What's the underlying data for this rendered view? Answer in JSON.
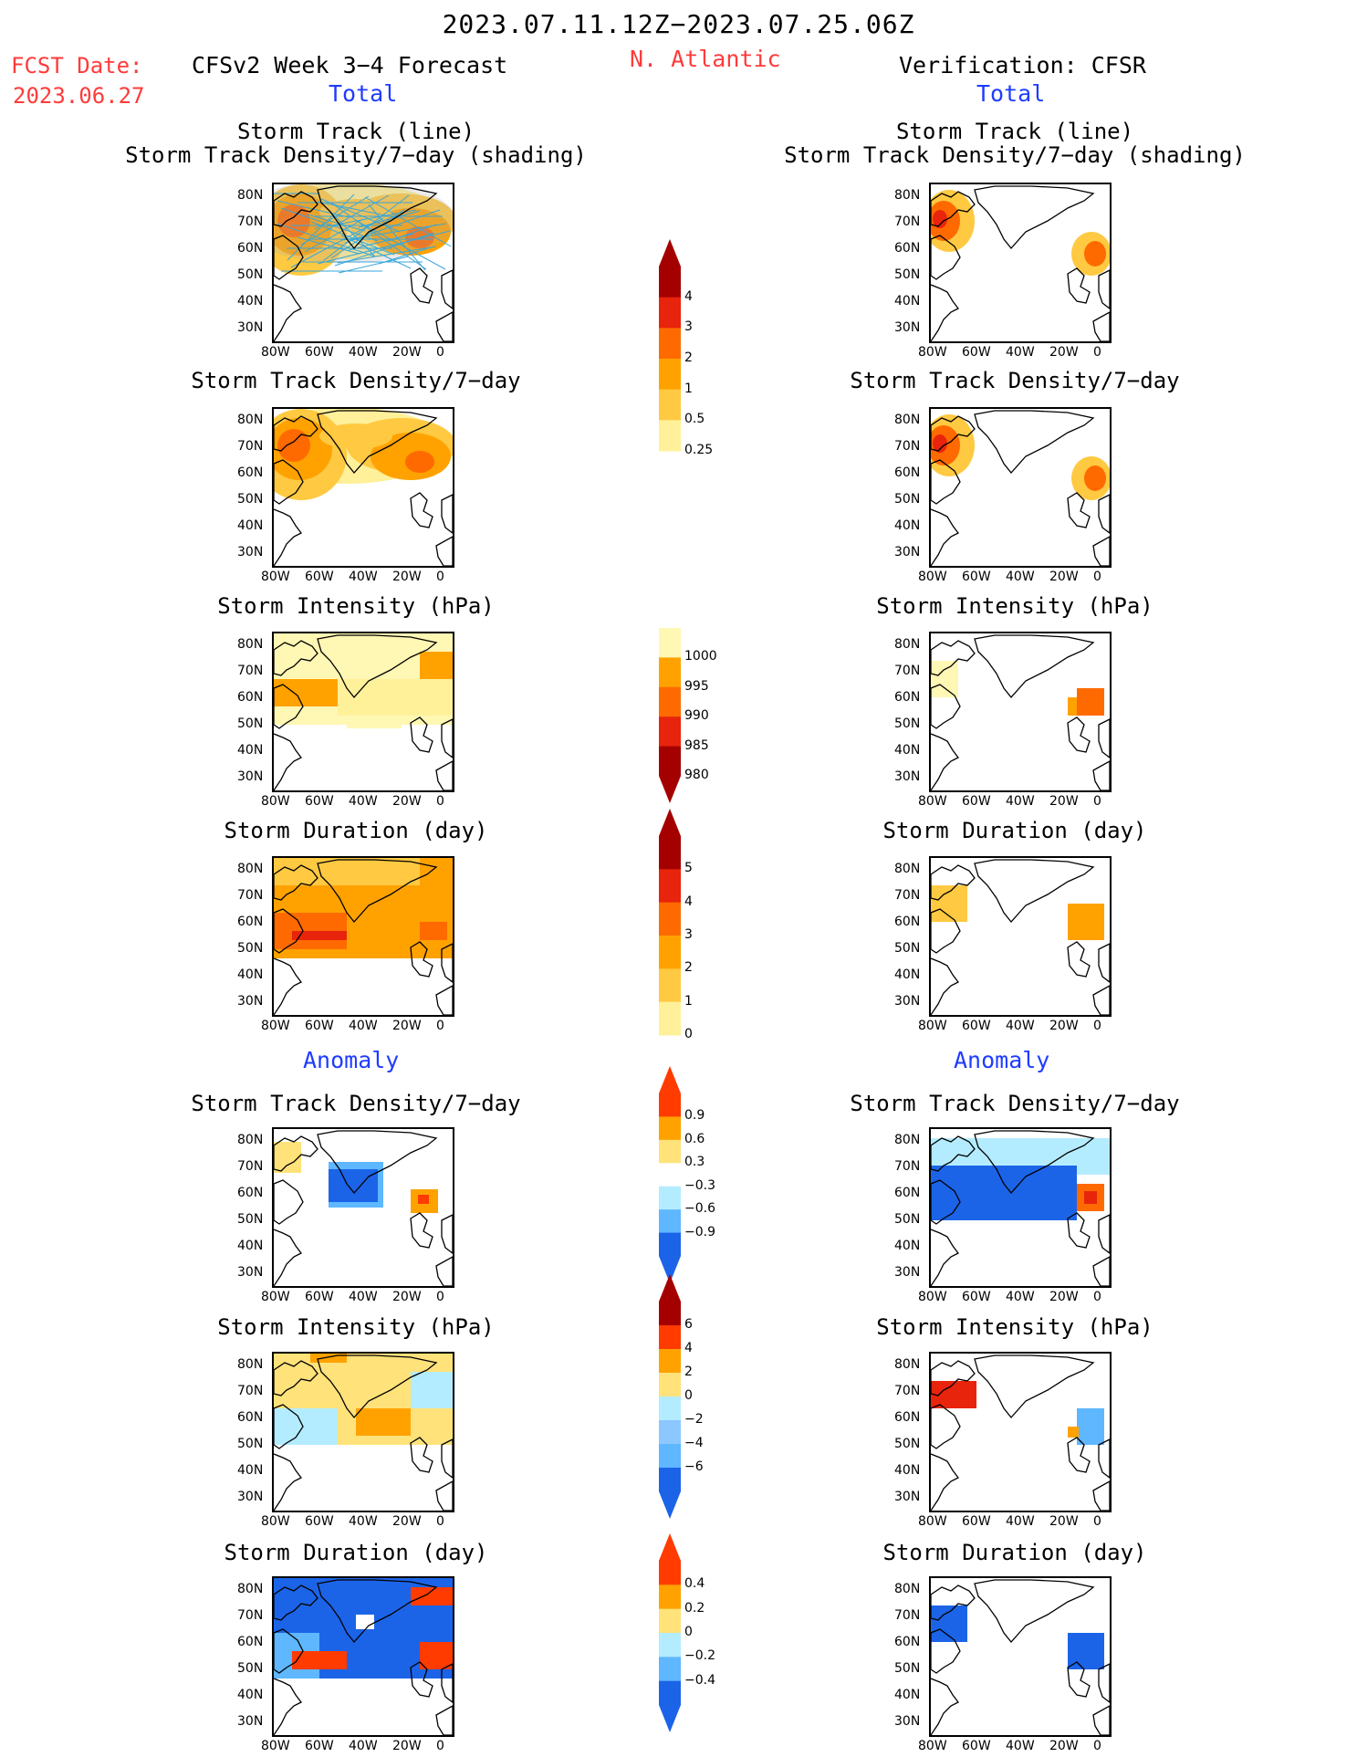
{
  "header": {
    "date_range": "2023.07.11.12Z−2023.07.25.06Z",
    "fcst_label": "FCST Date:",
    "fcst_date": "2023.06.27",
    "model_title": "CFSv2 Week 3−4 Forecast",
    "region": "N. Atlantic",
    "verification": "Verification: CFSR",
    "total_left": "Total",
    "total_right": "Total",
    "anomaly_left": "Anomaly",
    "anomaly_right": "Anomaly"
  },
  "panel_titles": {
    "track_line": "Storm Track (line)",
    "track_density_shading": "Storm Track Density/7−day (shading)",
    "track_density": "Storm Track Density/7−day",
    "intensity": "Storm Intensity (hPa)",
    "duration": "Storm Duration (day)"
  },
  "axes": {
    "lat_labels": [
      "80N",
      "70N",
      "60N",
      "50N",
      "40N",
      "30N"
    ],
    "lon_labels": [
      "80W",
      "60W",
      "40W",
      "20W",
      "0"
    ]
  },
  "colorbars": [
    {
      "id": "density",
      "labels": [
        "4",
        "3",
        "2",
        "1",
        "0.5",
        "0.25"
      ],
      "colors": [
        "#a50000",
        "#e8240c",
        "#ff6a00",
        "#ffa200",
        "#ffc941",
        "#fff09a"
      ],
      "arrow_top": true,
      "arrow_bottom": false
    },
    {
      "id": "intensity",
      "labels": [
        "1000",
        "995",
        "990",
        "985",
        "980"
      ],
      "colors": [
        "#fff7b4",
        "#ffa200",
        "#ff6a00",
        "#e8240c",
        "#a50000"
      ],
      "arrow_top": false,
      "arrow_bottom": true
    },
    {
      "id": "duration",
      "labels": [
        "5",
        "4",
        "3",
        "2",
        "1",
        "0"
      ],
      "colors": [
        "#a50000",
        "#e8240c",
        "#ff6a00",
        "#ffa200",
        "#ffc941",
        "#fff09a"
      ],
      "arrow_top": true,
      "arrow_bottom": false
    },
    {
      "id": "density_anom",
      "labels": [
        "0.9",
        "0.6",
        "0.3",
        "−0.3",
        "−0.6",
        "−0.9"
      ],
      "colors": [
        "#ff3b00",
        "#ffa200",
        "#ffe27a",
        "#ffffff",
        "#b4ecff",
        "#5eb7ff",
        "#1b64e8"
      ],
      "arrow_top": true,
      "arrow_bottom": true
    },
    {
      "id": "intensity_anom",
      "labels": [
        "6",
        "4",
        "2",
        "0",
        "−2",
        "−4",
        "−6"
      ],
      "colors": [
        "#a50000",
        "#ff3b00",
        "#ffa200",
        "#ffe27a",
        "#b4ecff",
        "#8cc8ff",
        "#5eb7ff",
        "#1b64e8"
      ],
      "arrow_top": true,
      "arrow_bottom": true
    },
    {
      "id": "duration_anom",
      "labels": [
        "0.4",
        "0.2",
        "0",
        "−0.2",
        "−0.4"
      ],
      "colors": [
        "#ff3b00",
        "#ffa200",
        "#ffe27a",
        "#b4ecff",
        "#5eb7ff",
        "#1b64e8"
      ],
      "arrow_top": true,
      "arrow_bottom": true
    }
  ]
}
